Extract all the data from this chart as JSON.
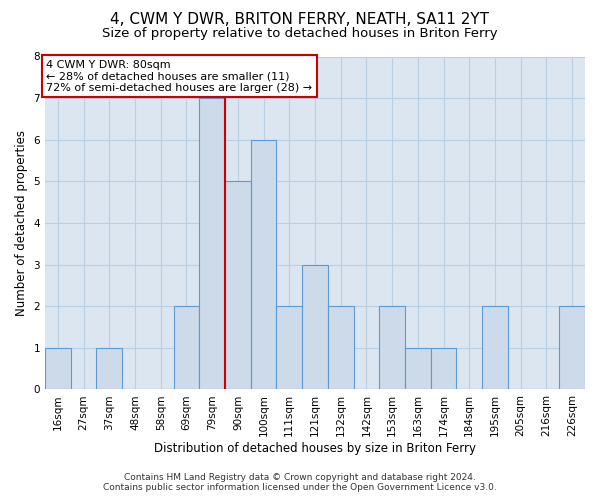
{
  "title": "4, CWM Y DWR, BRITON FERRY, NEATH, SA11 2YT",
  "subtitle": "Size of property relative to detached houses in Briton Ferry",
  "xlabel": "Distribution of detached houses by size in Briton Ferry",
  "ylabel": "Number of detached properties",
  "categories": [
    "16sqm",
    "27sqm",
    "37sqm",
    "48sqm",
    "58sqm",
    "69sqm",
    "79sqm",
    "90sqm",
    "100sqm",
    "111sqm",
    "121sqm",
    "132sqm",
    "142sqm",
    "153sqm",
    "163sqm",
    "174sqm",
    "184sqm",
    "195sqm",
    "205sqm",
    "216sqm",
    "226sqm"
  ],
  "values": [
    1,
    0,
    1,
    0,
    0,
    2,
    7,
    5,
    6,
    2,
    3,
    2,
    0,
    2,
    1,
    1,
    0,
    2,
    0,
    0,
    2
  ],
  "bar_color": "#ccdaea",
  "bar_edge_color": "#5b9bd5",
  "highlight_index": 6,
  "highlight_line_color": "#cc0000",
  "annotation_text": "4 CWM Y DWR: 80sqm\n← 28% of detached houses are smaller (11)\n72% of semi-detached houses are larger (28) →",
  "annotation_box_color": "#cc0000",
  "ylim": [
    0,
    8
  ],
  "yticks": [
    0,
    1,
    2,
    3,
    4,
    5,
    6,
    7,
    8
  ],
  "grid_color": "#b8cfe4",
  "background_color": "#dce6f1",
  "footer": "Contains HM Land Registry data © Crown copyright and database right 2024.\nContains public sector information licensed under the Open Government Licence v3.0.",
  "title_fontsize": 11,
  "subtitle_fontsize": 9.5,
  "xlabel_fontsize": 8.5,
  "ylabel_fontsize": 8.5,
  "tick_fontsize": 7.5,
  "annotation_fontsize": 8,
  "footer_fontsize": 6.5
}
